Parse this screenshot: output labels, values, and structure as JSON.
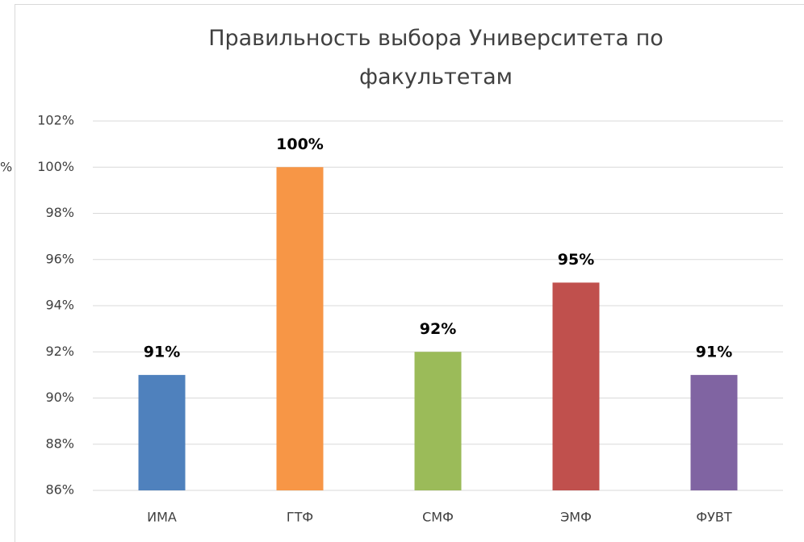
{
  "chart_data": {
    "type": "bar",
    "title": "Правильность выбора Университета по факультетам",
    "categories": [
      "ИМА",
      "ГТФ",
      "СМФ",
      "ЭМФ",
      "ФУВТ"
    ],
    "values": [
      91,
      100,
      92,
      95,
      91
    ],
    "value_labels": [
      "91%",
      "100%",
      "92%",
      "95%",
      "91%"
    ],
    "colors": [
      "#4f81bd",
      "#f79646",
      "#9bbb59",
      "#c0504d",
      "#8064a2"
    ],
    "ylim": [
      86,
      102
    ],
    "yticks": [
      {
        "value": 86,
        "label": "86%"
      },
      {
        "value": 88,
        "label": "88%"
      },
      {
        "value": 90,
        "label": "90%"
      },
      {
        "value": 92,
        "label": "92%"
      },
      {
        "value": 94,
        "label": "94%"
      },
      {
        "value": 96,
        "label": "96%"
      },
      {
        "value": 98,
        "label": "98%"
      },
      {
        "value": 100,
        "label": "100%"
      },
      {
        "value": 102,
        "label": "102%"
      }
    ],
    "grid": true,
    "clipped_text": "%"
  }
}
